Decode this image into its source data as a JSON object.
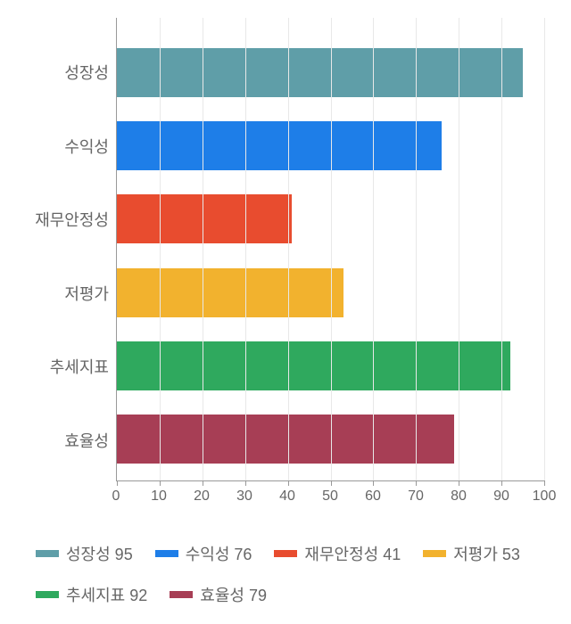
{
  "chart": {
    "type": "bar",
    "orientation": "horizontal",
    "categories": [
      "성장성",
      "수익성",
      "재무안정성",
      "저평가",
      "추세지표",
      "효율성"
    ],
    "values": [
      95,
      76,
      41,
      53,
      92,
      79
    ],
    "colors": [
      "#5f9ea8",
      "#1e7ee8",
      "#e84c2f",
      "#f2b22e",
      "#2fa95e",
      "#a73e55"
    ],
    "xlim": [
      0,
      100
    ],
    "xtick_step": 10,
    "background_color": "#ffffff",
    "grid_color": "#e8e8e8",
    "axis_color": "#999999",
    "label_color": "#666666",
    "label_fontsize": 18,
    "tick_fontsize": 16,
    "bar_height_ratio": 0.73
  },
  "legend": {
    "items": [
      {
        "label": "성장성 95",
        "color": "#5f9ea8"
      },
      {
        "label": "수익성 76",
        "color": "#1e7ee8"
      },
      {
        "label": "재무안정성 41",
        "color": "#e84c2f"
      },
      {
        "label": "저평가 53",
        "color": "#f2b22e"
      },
      {
        "label": "추세지표 92",
        "color": "#2fa95e"
      },
      {
        "label": "효율성 79",
        "color": "#a73e55"
      }
    ],
    "fontsize": 18,
    "marker_width": 26,
    "marker_height": 8
  }
}
